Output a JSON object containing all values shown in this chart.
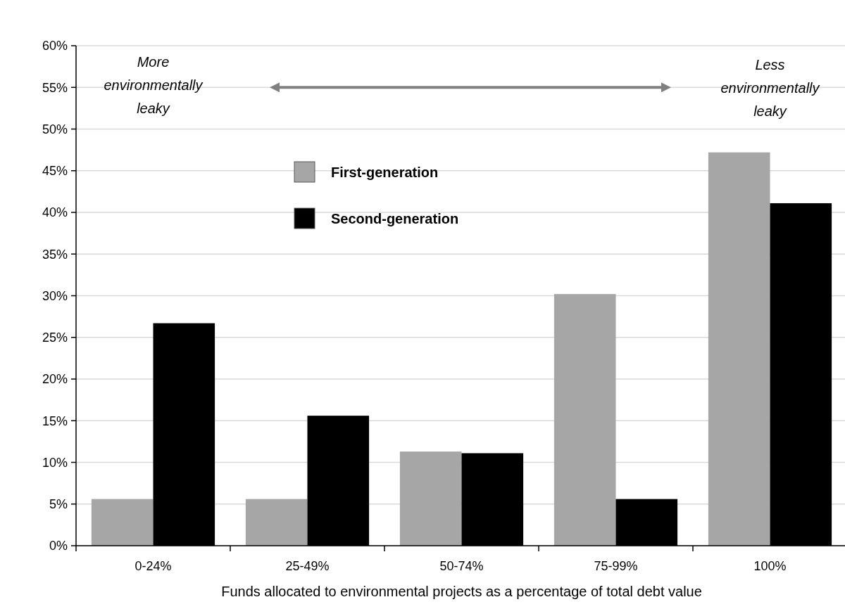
{
  "chart_data": {
    "type": "bar",
    "xlabel": "Funds allocated to environmental projects as a percentage of total debt value",
    "categories": [
      "0-24%",
      "25-49%",
      "50-74%",
      "75-99%",
      "100%"
    ],
    "series": [
      {
        "name": "First-generation",
        "color": "#a6a6a6",
        "values": [
          5.6,
          5.6,
          11.3,
          30.2,
          47.2
        ]
      },
      {
        "name": "Second-generation",
        "color": "#000000",
        "values": [
          26.7,
          15.6,
          11.1,
          5.6,
          41.1
        ]
      }
    ],
    "ylim": [
      0,
      60
    ],
    "yticks": [
      {
        "value": 0,
        "label": "0%"
      },
      {
        "value": 5,
        "label": "5%"
      },
      {
        "value": 10,
        "label": "10%"
      },
      {
        "value": 15,
        "label": "15%"
      },
      {
        "value": 20,
        "label": "20%"
      },
      {
        "value": 25,
        "label": "25%"
      },
      {
        "value": 30,
        "label": "30%"
      },
      {
        "value": 35,
        "label": "35%"
      },
      {
        "value": 40,
        "label": "40%"
      },
      {
        "value": 45,
        "label": "45%"
      },
      {
        "value": 50,
        "label": "50%"
      },
      {
        "value": 55,
        "label": "55%"
      },
      {
        "value": 60,
        "label": "60%"
      }
    ],
    "grid": "y",
    "legend": "top left",
    "annotations": [
      "More\nenvironmentally\nleaky",
      "Less\nenvironmentally\nleaky"
    ]
  }
}
